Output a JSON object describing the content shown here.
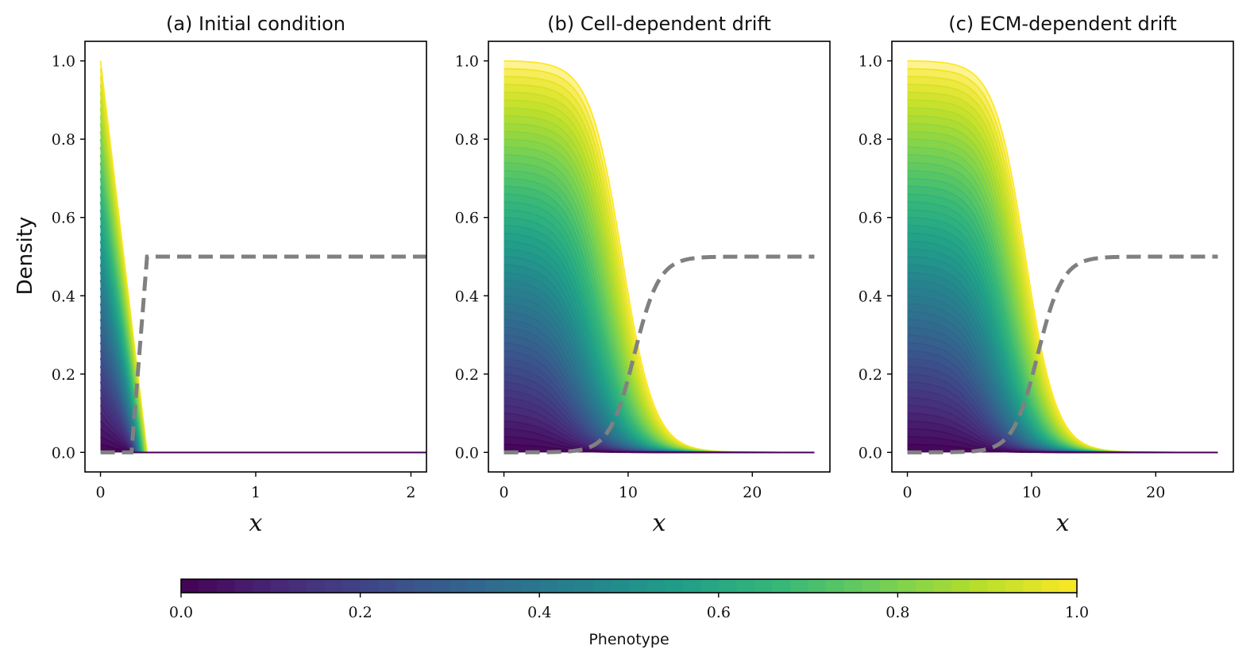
{
  "figure": {
    "ylabel": "Density",
    "colormap": {
      "name": "viridis",
      "stops": [
        "#440154",
        "#482878",
        "#3e4a89",
        "#31688e",
        "#26828e",
        "#1f9e89",
        "#35b779",
        "#6ece58",
        "#b5de2b",
        "#fde725"
      ]
    },
    "ecm_color": "#808080",
    "colorbar": {
      "label": "Phenotype",
      "range": [
        0,
        1
      ],
      "ticks": [
        0,
        0.2,
        0.4,
        0.6,
        0.8,
        1.0
      ],
      "tick_labels": [
        "0.0",
        "0.2",
        "0.4",
        "0.6",
        "0.8",
        "1.0"
      ]
    }
  },
  "chart_data": [
    {
      "type": "line",
      "title": "(a) Initial condition",
      "xlabel": "x",
      "ylabel": "Density",
      "xlim": [
        -0.1,
        2.1
      ],
      "ylim": [
        -0.05,
        1.05
      ],
      "xticks": [
        0,
        1,
        2
      ],
      "xtick_labels": [
        "0",
        "1",
        "2"
      ],
      "yticks": [
        0,
        0.2,
        0.4,
        0.6,
        0.8,
        1.0
      ],
      "ytick_labels": [
        "0.0",
        "0.2",
        "0.4",
        "0.6",
        "0.8",
        "1.0"
      ],
      "cell_profile": {
        "kind": "linear",
        "support_min": 0.2,
        "support_max": 0.3
      },
      "ecm_curve": {
        "kind": "ramp",
        "start": 0.2,
        "end": 0.3,
        "level": 0.5
      },
      "phenotype_levels": 50
    },
    {
      "type": "line",
      "title": "(b) Cell-dependent drift",
      "xlabel": "x",
      "ylabel": "Density",
      "xlim": [
        -1.25,
        26.25
      ],
      "ylim": [
        -0.05,
        1.05
      ],
      "xticks": [
        0,
        10,
        20
      ],
      "xtick_labels": [
        "0",
        "10",
        "20"
      ],
      "yticks": [
        0,
        0.2,
        0.4,
        0.6,
        0.8,
        1.0
      ],
      "ytick_labels": [
        "0.0",
        "0.2",
        "0.4",
        "0.6",
        "0.8",
        "1.0"
      ],
      "x_max": 25,
      "cell_profile": {
        "kind": "logistic",
        "front_min": 4.0,
        "front_max": 9.5,
        "width": 1.3
      },
      "ecm_curve": {
        "kind": "logistic",
        "center": 10.5,
        "width": 1.0,
        "level": 0.5
      },
      "phenotype_levels": 50
    },
    {
      "type": "line",
      "title": "(c) ECM-dependent drift",
      "xlabel": "x",
      "ylabel": "Density",
      "xlim": [
        -1.25,
        26.25
      ],
      "ylim": [
        -0.05,
        1.05
      ],
      "xticks": [
        0,
        10,
        20
      ],
      "xtick_labels": [
        "0",
        "10",
        "20"
      ],
      "yticks": [
        0,
        0.2,
        0.4,
        0.6,
        0.8,
        1.0
      ],
      "ytick_labels": [
        "0.0",
        "0.2",
        "0.4",
        "0.6",
        "0.8",
        "1.0"
      ],
      "x_max": 25,
      "cell_profile": {
        "kind": "logistic",
        "front_min": 4.8,
        "front_max": 9.5,
        "width": 1.25
      },
      "ecm_curve": {
        "kind": "logistic",
        "center": 10.5,
        "width": 1.0,
        "level": 0.5
      },
      "phenotype_levels": 50
    }
  ]
}
